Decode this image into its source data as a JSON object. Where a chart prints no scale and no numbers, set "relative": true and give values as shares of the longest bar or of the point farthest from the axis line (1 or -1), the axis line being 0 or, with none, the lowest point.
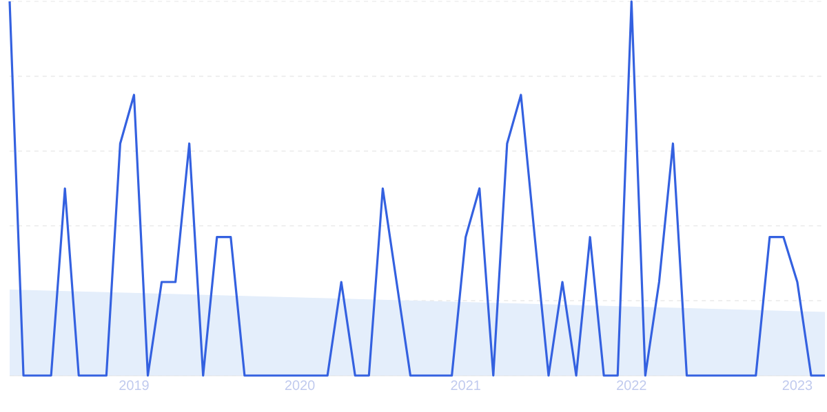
{
  "chart_data": {
    "type": "line",
    "relative": true,
    "grid": "y",
    "tick_labels": "x",
    "x": [
      "2018-04",
      "2018-05",
      "2018-06",
      "2018-07",
      "2018-08",
      "2018-09",
      "2018-10",
      "2018-11",
      "2018-12",
      "2019-01",
      "2019-02",
      "2019-03",
      "2019-04",
      "2019-05",
      "2019-06",
      "2019-07",
      "2019-08",
      "2019-09",
      "2019-10",
      "2019-11",
      "2019-12",
      "2020-01",
      "2020-02",
      "2020-03",
      "2020-04",
      "2020-05",
      "2020-06",
      "2020-07",
      "2020-08",
      "2020-09",
      "2020-10",
      "2020-11",
      "2020-12",
      "2021-01",
      "2021-02",
      "2021-03",
      "2021-04",
      "2021-05",
      "2021-06",
      "2021-07",
      "2021-08",
      "2021-09",
      "2021-10",
      "2021-11",
      "2021-12",
      "2022-01",
      "2022-02",
      "2022-03",
      "2022-04",
      "2022-05",
      "2022-06",
      "2022-07",
      "2022-08",
      "2022-09",
      "2022-10",
      "2022-11",
      "2022-12",
      "2023-01",
      "2023-02",
      "2023-03"
    ],
    "xlim": [
      "2018-04",
      "2023-03"
    ],
    "xticks": [
      {
        "value": "2019-01",
        "label": "2019"
      },
      {
        "value": "2020-01",
        "label": "2020"
      },
      {
        "value": "2021-01",
        "label": "2021"
      },
      {
        "value": "2022-01",
        "label": "2022"
      },
      {
        "value": "2023-01",
        "label": "2023"
      }
    ],
    "series": [
      {
        "type": "area",
        "color": "#e4eefb",
        "x": [
          "2018-04",
          "2023-03"
        ],
        "values": [
          0.23,
          0.17
        ]
      },
      {
        "color": "#3461e0",
        "values": [
          1.0,
          0,
          0,
          0,
          0.5,
          0,
          0,
          0,
          0.62,
          0.75,
          0,
          0.25,
          0.25,
          0.62,
          0,
          0.37,
          0.37,
          0,
          0,
          0,
          0,
          0,
          0,
          0,
          0.25,
          0,
          0,
          0.5,
          0.25,
          0,
          0,
          0,
          0,
          0.37,
          0.5,
          0,
          0.62,
          0.75,
          0.37,
          0,
          0.25,
          0,
          0.37,
          0,
          0,
          1.0,
          0,
          0.25,
          0.62,
          0,
          0,
          0,
          0,
          0,
          0,
          0.37,
          0.37,
          0.25,
          0,
          0
        ]
      }
    ]
  }
}
